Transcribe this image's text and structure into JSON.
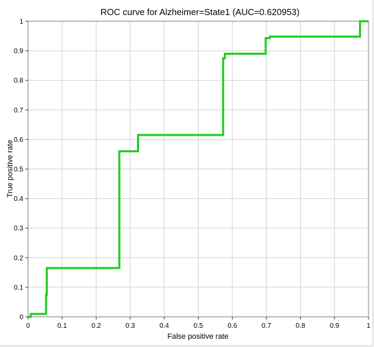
{
  "chart_data": {
    "type": "line",
    "title": "ROC curve for Alzheimer=State1 (AUC=0.620953)",
    "xlabel": "False positive rate",
    "ylabel": "True positive rate",
    "xlim": [
      0,
      1
    ],
    "ylim": [
      0,
      1
    ],
    "xticks": [
      "0",
      "0.1",
      "0.2",
      "0.3",
      "0.4",
      "0.5",
      "0.6",
      "0.7",
      "0.8",
      "0.9",
      "1"
    ],
    "yticks": [
      "0",
      "0.1",
      "0.2",
      "0.3",
      "0.4",
      "0.5",
      "0.6",
      "0.7",
      "0.8",
      "0.9",
      "1"
    ],
    "grid": true,
    "series": [
      {
        "color": "#22cc22",
        "x": [
          0,
          0.008,
          0.008,
          0.053,
          0.053,
          0.055,
          0.055,
          0.268,
          0.268,
          0.323,
          0.323,
          0.573,
          0.573,
          0.578,
          0.578,
          0.698,
          0.698,
          0.71,
          0.71,
          0.975,
          0.975,
          1
        ],
        "y": [
          0,
          0,
          0.01,
          0.01,
          0.075,
          0.075,
          0.165,
          0.165,
          0.56,
          0.56,
          0.615,
          0.615,
          0.875,
          0.875,
          0.89,
          0.89,
          0.943,
          0.943,
          0.948,
          0.948,
          1.0,
          1.0
        ]
      }
    ]
  }
}
